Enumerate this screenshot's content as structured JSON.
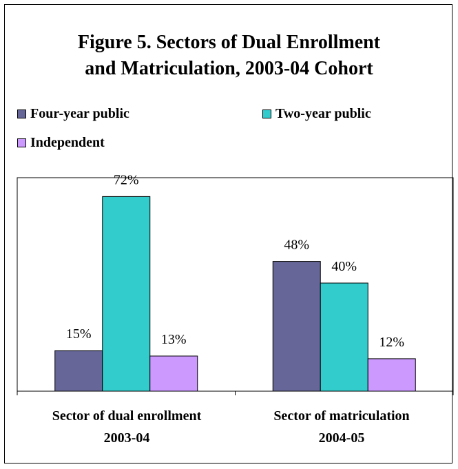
{
  "title_line1": "Figure 5.  Sectors of Dual Enrollment",
  "title_line2": "and Matriculation, 2003-04 Cohort",
  "chart_data": {
    "type": "bar",
    "title": "Figure 5. Sectors of Dual Enrollment and Matriculation, 2003-04 Cohort",
    "categories": [
      {
        "line1": "Sector of dual enrollment",
        "line2": "2003-04"
      },
      {
        "line1": "Sector of matriculation",
        "line2": "2004-05"
      }
    ],
    "series": [
      {
        "name": "Four-year public",
        "values": [
          15,
          48
        ],
        "labels": [
          "15%",
          "48%"
        ],
        "color": "#666699"
      },
      {
        "name": "Two-year public",
        "values": [
          72,
          40
        ],
        "labels": [
          "72%",
          "40%"
        ],
        "color": "#33CCCC"
      },
      {
        "name": "Independent",
        "values": [
          13,
          12
        ],
        "labels": [
          "13%",
          "12%"
        ],
        "color": "#CC99FF"
      }
    ],
    "ylim": [
      0,
      80
    ],
    "legend_position": "top",
    "grid": false
  }
}
